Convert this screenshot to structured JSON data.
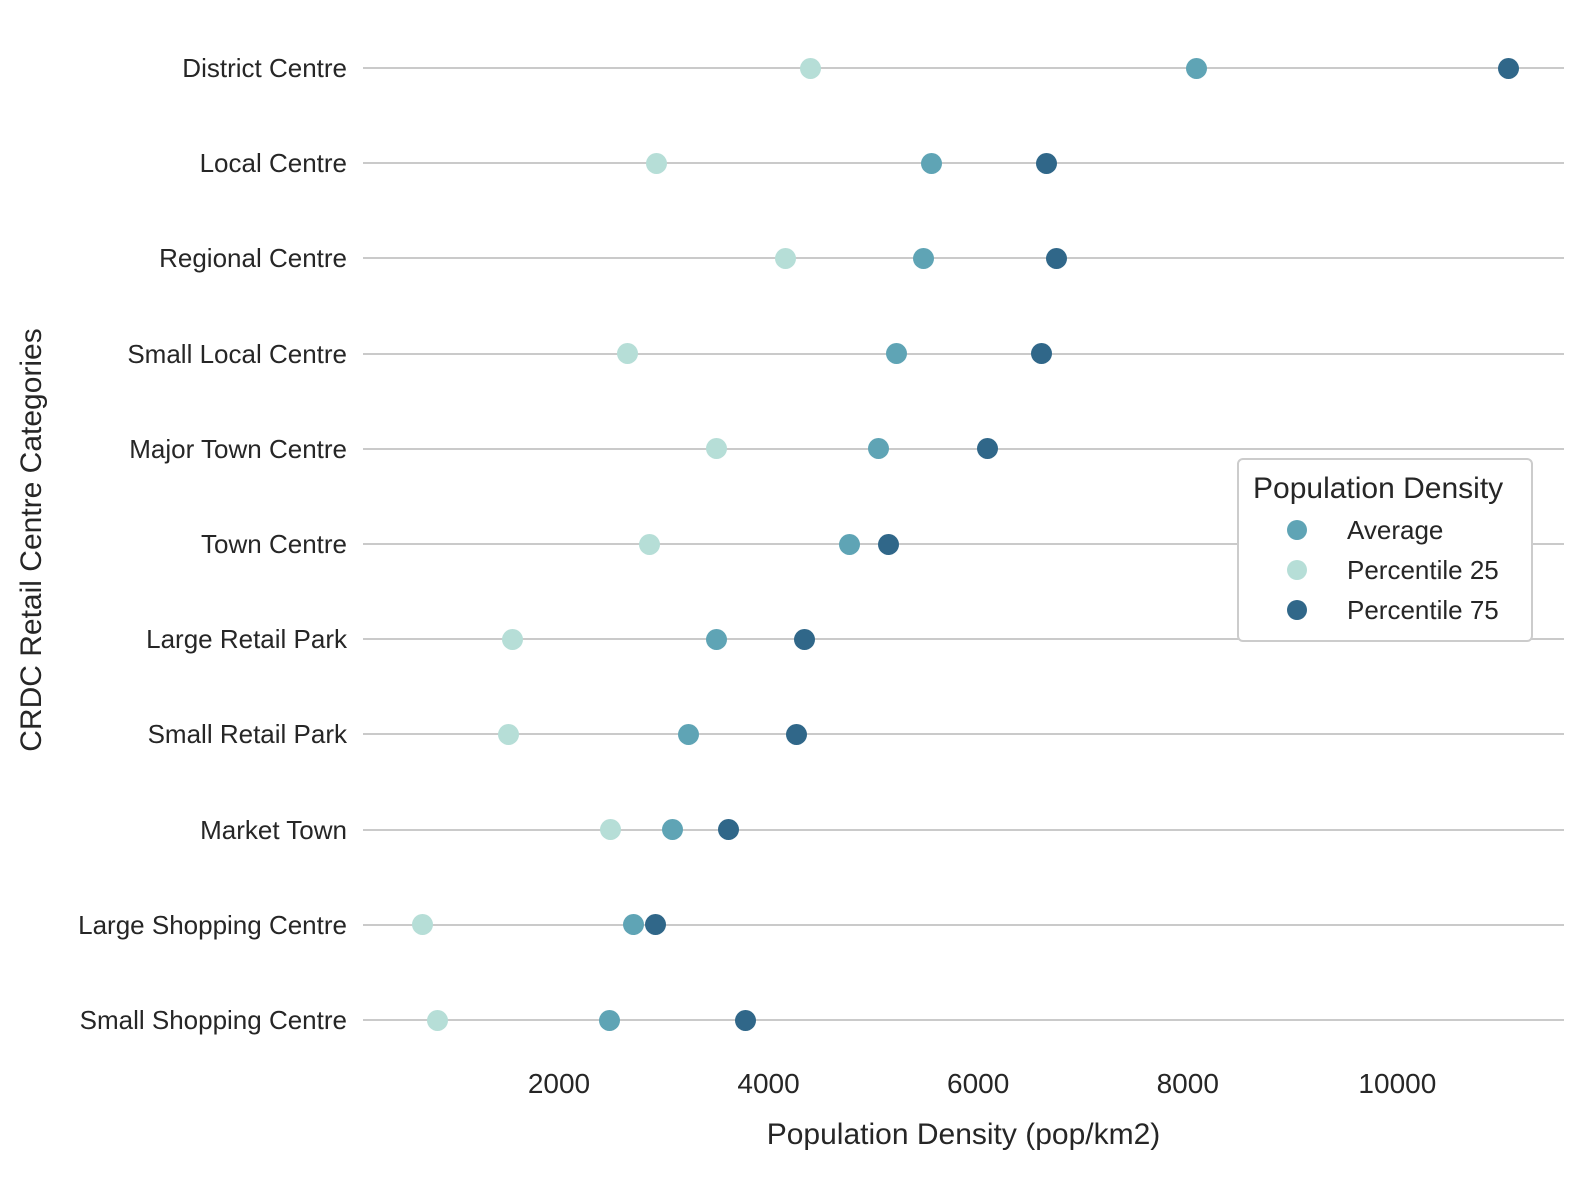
{
  "chart_data": {
    "type": "scatter",
    "subtype": "horizontal-dot-plot",
    "categories": [
      "District Centre",
      "Local Centre",
      "Regional Centre",
      "Small Local Centre",
      "Major Town Centre",
      "Town Centre",
      "Large Retail Park",
      "Small Retail Park",
      "Market Town",
      "Large Shopping Centre",
      "Small Shopping Centre"
    ],
    "series": [
      {
        "name": "Average",
        "color": "#5FA4B5",
        "values": [
          8080,
          5550,
          5480,
          5220,
          5050,
          4770,
          3500,
          3240,
          3080,
          2710,
          2480
        ]
      },
      {
        "name": "Percentile 25",
        "color": "#B6DED7",
        "values": [
          4400,
          2930,
          4160,
          2650,
          3500,
          2860,
          1560,
          1520,
          2490,
          700,
          840
        ]
      },
      {
        "name": "Percentile 75",
        "color": "#306789",
        "values": [
          11060,
          6650,
          6750,
          6600,
          6090,
          5140,
          4340,
          4270,
          3620,
          2920,
          3780
        ]
      }
    ],
    "xlabel": "Population Density (pop/km2)",
    "ylabel": "CRDC Retail Centre Categories",
    "xlim": [
      130,
      11590
    ],
    "xticks": [
      2000,
      4000,
      6000,
      8000,
      10000
    ],
    "grid": "horizontal-only",
    "legend": {
      "title": "Population Density",
      "position": "right-middle",
      "entries": [
        "Average",
        "Percentile 25",
        "Percentile 75"
      ]
    }
  },
  "colors": {
    "background": "#ffffff",
    "gridline": "#cacaca",
    "text": "#262626",
    "legend_border": "#cccccc"
  }
}
